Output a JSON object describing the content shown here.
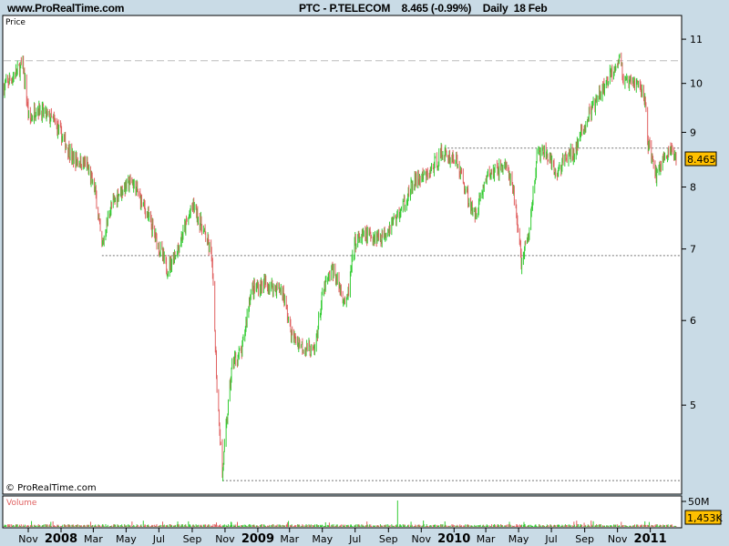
{
  "header": {
    "site": "www.ProRealTime.com",
    "title": "PTC - P.TELECOM    8.465 (-0.99%)    Daily  18 Feb"
  },
  "price_panel": {
    "label": "Price",
    "copyright": "© ProRealTime.com",
    "last_value": "8.465"
  },
  "volume_panel": {
    "label": "Volume",
    "axis_label": "50M",
    "last_value": "1,453K"
  },
  "colors": {
    "up": "#33cc33",
    "down": "#e06060",
    "background": "#c9dbe6",
    "badge": "#ffc000"
  },
  "chart_data": {
    "type": "candlestick",
    "title": "PTC - P.TELECOM",
    "y_scale": "log",
    "ylim": [
      4.2,
      11.5
    ],
    "y_ticks": [
      "11",
      "10",
      "9",
      "8",
      "7",
      "6",
      "5"
    ],
    "y_tick_values": [
      11,
      10,
      9,
      8,
      7,
      6,
      5
    ],
    "x_tick_labels": [
      "Nov",
      "2008",
      "Mar",
      "May",
      "Jul",
      "Sep",
      "Nov",
      "2009",
      "Mar",
      "May",
      "Jul",
      "Sep",
      "Nov",
      "2010",
      "Mar",
      "May",
      "Jul",
      "Sep",
      "Nov",
      "2011"
    ],
    "x_tick_dates": [
      "2007-11-01",
      "2008-01-01",
      "2008-03-01",
      "2008-05-01",
      "2008-07-01",
      "2008-09-01",
      "2008-11-01",
      "2009-01-01",
      "2009-03-01",
      "2009-05-01",
      "2009-07-01",
      "2009-09-01",
      "2009-11-01",
      "2010-01-01",
      "2010-03-01",
      "2010-05-01",
      "2010-07-01",
      "2010-09-01",
      "2010-11-01",
      "2011-01-01"
    ],
    "xlim": [
      "2007-09-15",
      "2011-02-25"
    ],
    "approx_close_path": [
      [
        "2007-09-15",
        9.9
      ],
      [
        "2007-10-22",
        10.4
      ],
      [
        "2007-11-03",
        9.2
      ],
      [
        "2007-11-16",
        9.5
      ],
      [
        "2007-12-20",
        9.2
      ],
      [
        "2008-01-23",
        8.5
      ],
      [
        "2008-02-17",
        8.4
      ],
      [
        "2008-03-05",
        7.9
      ],
      [
        "2008-03-17",
        7.0
      ],
      [
        "2008-03-31",
        7.6
      ],
      [
        "2008-04-17",
        7.9
      ],
      [
        "2008-05-12",
        8.1
      ],
      [
        "2008-06-07",
        7.6
      ],
      [
        "2008-06-24",
        7.2
      ],
      [
        "2008-07-16",
        6.7
      ],
      [
        "2008-08-05",
        7.0
      ],
      [
        "2008-09-03",
        7.7
      ],
      [
        "2008-09-25",
        7.2
      ],
      [
        "2008-10-07",
        6.9
      ],
      [
        "2008-10-17",
        5.2
      ],
      [
        "2008-10-27",
        4.3
      ],
      [
        "2008-11-15",
        5.5
      ],
      [
        "2008-12-02",
        5.6
      ],
      [
        "2008-12-19",
        6.4
      ],
      [
        "2009-01-13",
        6.5
      ],
      [
        "2009-02-16",
        6.4
      ],
      [
        "2009-03-05",
        5.8
      ],
      [
        "2009-03-22",
        5.7
      ],
      [
        "2009-04-16",
        5.6
      ],
      [
        "2009-05-03",
        6.4
      ],
      [
        "2009-05-20",
        6.7
      ],
      [
        "2009-06-15",
        6.2
      ],
      [
        "2009-07-01",
        7.1
      ],
      [
        "2009-07-18",
        7.2
      ],
      [
        "2009-08-21",
        7.2
      ],
      [
        "2009-09-24",
        7.6
      ],
      [
        "2009-10-20",
        8.1
      ],
      [
        "2009-11-14",
        8.2
      ],
      [
        "2009-12-09",
        8.6
      ],
      [
        "2010-01-04",
        8.5
      ],
      [
        "2010-01-21",
        8.0
      ],
      [
        "2010-02-07",
        7.5
      ],
      [
        "2010-03-04",
        8.2
      ],
      [
        "2010-04-07",
        8.4
      ],
      [
        "2010-04-24",
        7.8
      ],
      [
        "2010-05-06",
        6.8
      ],
      [
        "2010-05-20",
        7.2
      ],
      [
        "2010-06-05",
        8.6
      ],
      [
        "2010-06-22",
        8.6
      ],
      [
        "2010-07-09",
        8.2
      ],
      [
        "2010-07-26",
        8.5
      ],
      [
        "2010-08-12",
        8.6
      ],
      [
        "2010-09-07",
        9.3
      ],
      [
        "2010-10-02",
        9.8
      ],
      [
        "2010-10-28",
        10.4
      ],
      [
        "2010-11-05",
        10.6
      ],
      [
        "2010-11-13",
        10.0
      ],
      [
        "2010-12-09",
        10.0
      ],
      [
        "2010-12-22",
        9.7
      ],
      [
        "2010-12-26",
        8.9
      ],
      [
        "2011-01-12",
        8.2
      ],
      [
        "2011-01-29",
        8.6
      ],
      [
        "2011-02-15",
        8.6
      ],
      [
        "2011-02-18",
        8.465
      ]
    ],
    "high": 11.0,
    "low": 4.25,
    "reference_lines": [
      {
        "value": 10.5,
        "from": "2007-09-15",
        "style": "dashed"
      },
      {
        "value": 8.7,
        "from": "2009-12-20",
        "style": "dotted"
      },
      {
        "value": 6.9,
        "from": "2008-03-17",
        "style": "dotted"
      },
      {
        "value": 4.25,
        "from": "2008-10-27",
        "style": "dotted"
      }
    ],
    "volume": {
      "axis_max_label": "50M",
      "last": "1,453K"
    }
  }
}
